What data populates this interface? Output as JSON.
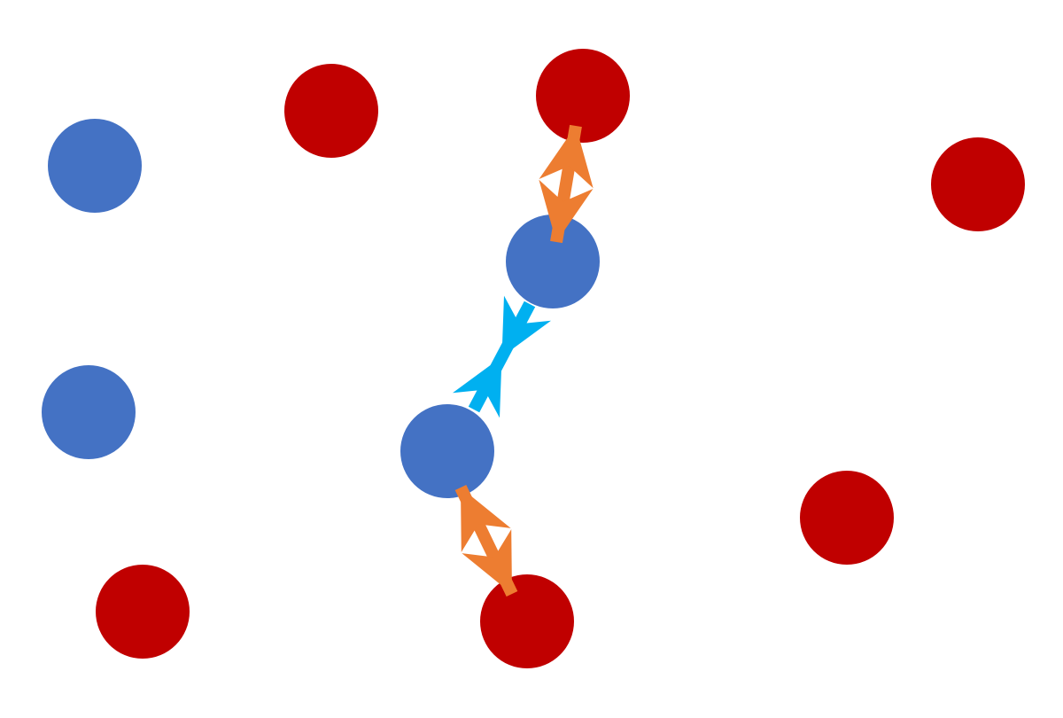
{
  "colors": {
    "background": "#ffffff",
    "blue_node": "#4472c4",
    "red_node": "#c00000",
    "orange_arrow": "#ed7d31",
    "cyan_arrow": "#00b0f0"
  },
  "nodes": [
    {
      "id": "blue-1",
      "type": "blue"
    },
    {
      "id": "blue-2",
      "type": "blue"
    },
    {
      "id": "blue-3",
      "type": "blue"
    },
    {
      "id": "blue-4",
      "type": "blue"
    },
    {
      "id": "red-1",
      "type": "red"
    },
    {
      "id": "red-2",
      "type": "red"
    },
    {
      "id": "red-3",
      "type": "red"
    },
    {
      "id": "red-4",
      "type": "red"
    },
    {
      "id": "red-5",
      "type": "red"
    },
    {
      "id": "red-6",
      "type": "red"
    }
  ],
  "edges": [
    {
      "from": "red-2",
      "to": "blue-3",
      "style": "repel",
      "color": "orange"
    },
    {
      "from": "blue-3",
      "to": "blue-4",
      "style": "attract",
      "color": "cyan"
    },
    {
      "from": "blue-4",
      "to": "red-6",
      "style": "repel",
      "color": "orange"
    }
  ]
}
